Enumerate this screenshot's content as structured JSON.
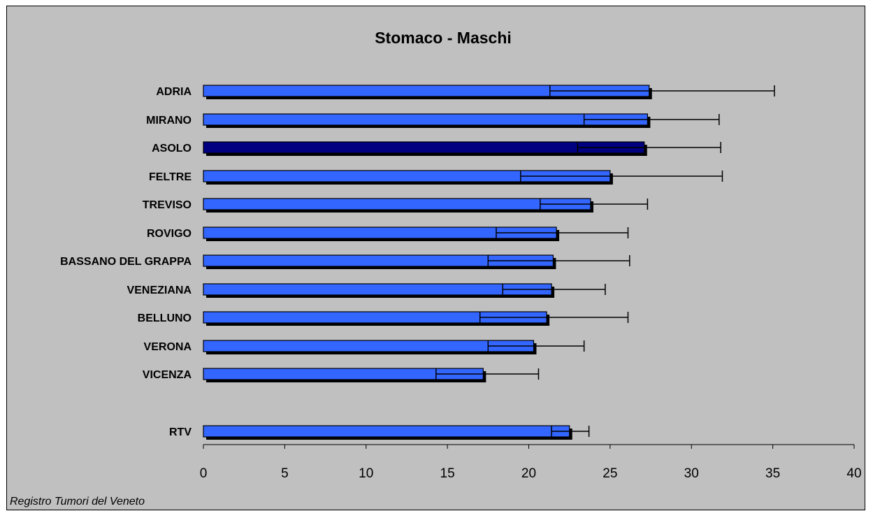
{
  "chart_data": {
    "type": "bar",
    "orientation": "horizontal",
    "title": "Stomaco - Maschi",
    "source_note": "Registro Tumori del Veneto",
    "xlim": [
      0,
      40
    ],
    "xticks": [
      0,
      5,
      10,
      15,
      20,
      25,
      30,
      35,
      40
    ],
    "grid": false,
    "colors": {
      "bar": "#3366ff",
      "highlight": "#000080",
      "shadow": "#000000",
      "background": "#c0c0c0"
    },
    "categories": [
      "ADRIA",
      "MIRANO",
      "ASOLO",
      "FELTRE",
      "TREVISO",
      "ROVIGO",
      "BASSANO DEL GRAPPA",
      "VENEZIANA",
      "BELLUNO",
      "VERONA",
      "VICENZA",
      "RTV"
    ],
    "highlighted": [
      "ASOLO"
    ],
    "values": [
      27.4,
      27.3,
      27.1,
      25.0,
      23.8,
      21.7,
      21.5,
      21.4,
      21.1,
      20.3,
      17.2,
      22.5
    ],
    "ci_low": [
      21.3,
      23.4,
      23.0,
      19.5,
      20.7,
      18.0,
      17.5,
      18.4,
      17.0,
      17.5,
      14.3,
      21.4
    ],
    "ci_high": [
      35.1,
      31.7,
      31.8,
      31.9,
      27.3,
      26.1,
      26.2,
      24.7,
      26.1,
      23.4,
      20.6,
      23.7
    ]
  }
}
